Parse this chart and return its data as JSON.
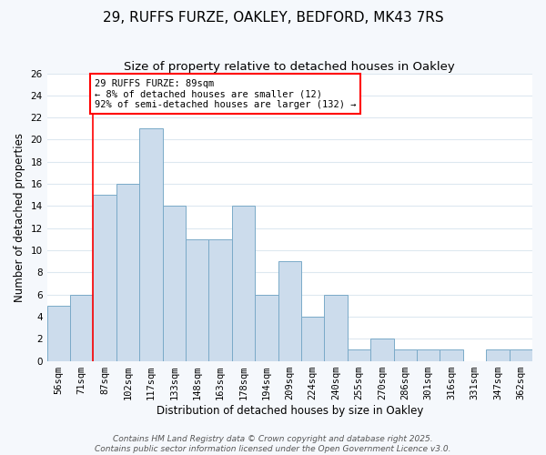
{
  "title": "29, RUFFS FURZE, OAKLEY, BEDFORD, MK43 7RS",
  "subtitle": "Size of property relative to detached houses in Oakley",
  "xlabel": "Distribution of detached houses by size in Oakley",
  "ylabel": "Number of detached properties",
  "bar_labels": [
    "56sqm",
    "71sqm",
    "87sqm",
    "102sqm",
    "117sqm",
    "133sqm",
    "148sqm",
    "163sqm",
    "178sqm",
    "194sqm",
    "209sqm",
    "224sqm",
    "240sqm",
    "255sqm",
    "270sqm",
    "286sqm",
    "301sqm",
    "316sqm",
    "331sqm",
    "347sqm",
    "362sqm"
  ],
  "bar_values": [
    5,
    6,
    15,
    16,
    21,
    14,
    11,
    11,
    14,
    6,
    9,
    4,
    6,
    1,
    2,
    1,
    1,
    1,
    0,
    1,
    1
  ],
  "bar_color": "#ccdcec",
  "bar_edge_color": "#7aaac8",
  "ylim": [
    0,
    26
  ],
  "yticks": [
    0,
    2,
    4,
    6,
    8,
    10,
    12,
    14,
    16,
    18,
    20,
    22,
    24,
    26
  ],
  "vline_x_index": 2,
  "vline_color": "red",
  "annotation_text": "29 RUFFS FURZE: 89sqm\n← 8% of detached houses are smaller (12)\n92% of semi-detached houses are larger (132) →",
  "annotation_box_color": "white",
  "annotation_box_edge_color": "red",
  "footer1": "Contains HM Land Registry data © Crown copyright and database right 2025.",
  "footer2": "Contains public sector information licensed under the Open Government Licence v3.0.",
  "plot_bg_color": "#ffffff",
  "fig_bg_color": "#f5f8fc",
  "grid_color": "#dde8f0",
  "title_fontsize": 11,
  "subtitle_fontsize": 9.5,
  "axis_label_fontsize": 8.5,
  "tick_fontsize": 7.5,
  "annotation_fontsize": 7.5,
  "footer_fontsize": 6.5
}
